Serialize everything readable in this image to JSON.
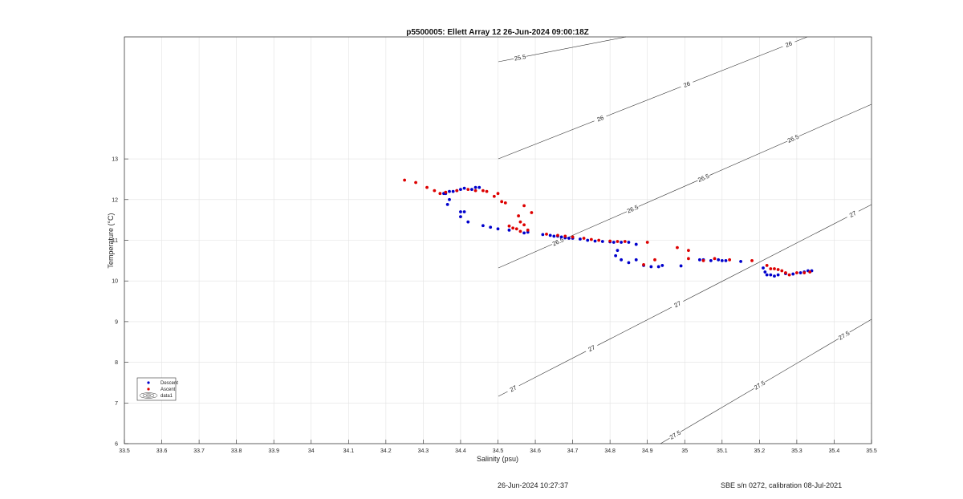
{
  "chart_data": {
    "type": "scatter",
    "title": "p5500005: Ellett Array 12 26-Jun-2024 09:00:18Z",
    "xlabel": "Salinity (psu)",
    "ylabel": "Temperature (°C)",
    "xlim": [
      33.5,
      35.5
    ],
    "ylim": [
      6,
      16
    ],
    "xticks": [
      "33.5",
      "33.6",
      "33.7",
      "33.8",
      "33.9",
      "34",
      "34.1",
      "34.2",
      "34.3",
      "34.4",
      "34.5",
      "34.6",
      "34.7",
      "34.8",
      "34.9",
      "35",
      "35.1",
      "35.2",
      "35.3",
      "35.4",
      "35.5"
    ],
    "yticks": [
      "6",
      "7",
      "8",
      "9",
      "10",
      "11",
      "12",
      "13"
    ],
    "grid": true,
    "legend_position": "lower-left",
    "legend": [
      {
        "name": "Descent",
        "color": "#0000cc",
        "marker": "dot"
      },
      {
        "name": "Ascent",
        "color": "#dd0000",
        "marker": "dot"
      },
      {
        "name": "data1",
        "color": "#333333",
        "marker": "contour"
      }
    ],
    "series": [
      {
        "name": "Descent",
        "color": "#0000cc",
        "points": [
          [
            34.37,
            12.2
          ],
          [
            34.38,
            12.2
          ],
          [
            34.39,
            12.22
          ],
          [
            34.4,
            12.25
          ],
          [
            34.41,
            12.28
          ],
          [
            34.43,
            12.25
          ],
          [
            34.44,
            12.3
          ],
          [
            34.45,
            12.3
          ],
          [
            34.355,
            12.15
          ],
          [
            34.36,
            12.15
          ],
          [
            34.37,
            12.0
          ],
          [
            34.365,
            11.88
          ],
          [
            34.4,
            11.7
          ],
          [
            34.41,
            11.7
          ],
          [
            34.4,
            11.58
          ],
          [
            34.42,
            11.45
          ],
          [
            34.46,
            11.36
          ],
          [
            34.48,
            11.32
          ],
          [
            34.5,
            11.28
          ],
          [
            34.53,
            11.25
          ],
          [
            34.57,
            11.18
          ],
          [
            34.58,
            11.2
          ],
          [
            34.62,
            11.14
          ],
          [
            34.64,
            11.12
          ],
          [
            34.65,
            11.1
          ],
          [
            34.66,
            11.1
          ],
          [
            34.67,
            11.08
          ],
          [
            34.68,
            11.06
          ],
          [
            34.69,
            11.05
          ],
          [
            34.7,
            11.05
          ],
          [
            34.72,
            11.03
          ],
          [
            34.74,
            11.0
          ],
          [
            34.76,
            10.98
          ],
          [
            34.78,
            10.97
          ],
          [
            34.8,
            10.96
          ],
          [
            34.81,
            10.95
          ],
          [
            34.83,
            10.95
          ],
          [
            34.85,
            10.95
          ],
          [
            34.87,
            10.9
          ],
          [
            34.82,
            10.75
          ],
          [
            34.815,
            10.62
          ],
          [
            34.83,
            10.52
          ],
          [
            34.85,
            10.45
          ],
          [
            34.87,
            10.52
          ],
          [
            34.89,
            10.38
          ],
          [
            34.91,
            10.35
          ],
          [
            34.93,
            10.35
          ],
          [
            34.94,
            10.38
          ],
          [
            34.99,
            10.37
          ],
          [
            35.04,
            10.52
          ],
          [
            35.05,
            10.52
          ],
          [
            35.07,
            10.5
          ],
          [
            35.09,
            10.52
          ],
          [
            35.1,
            10.5
          ],
          [
            35.11,
            10.5
          ],
          [
            35.15,
            10.48
          ],
          [
            35.21,
            10.32
          ],
          [
            35.215,
            10.22
          ],
          [
            35.22,
            10.15
          ],
          [
            35.23,
            10.15
          ],
          [
            35.24,
            10.12
          ],
          [
            35.25,
            10.15
          ],
          [
            35.27,
            10.18
          ],
          [
            35.29,
            10.17
          ],
          [
            35.31,
            10.2
          ],
          [
            35.32,
            10.22
          ],
          [
            35.33,
            10.25
          ],
          [
            35.34,
            10.25
          ]
        ]
      },
      {
        "name": "Ascent",
        "color": "#dd0000",
        "points": [
          [
            34.25,
            12.48
          ],
          [
            34.28,
            12.42
          ],
          [
            34.31,
            12.3
          ],
          [
            34.33,
            12.22
          ],
          [
            34.345,
            12.15
          ],
          [
            34.36,
            12.18
          ],
          [
            34.39,
            12.22
          ],
          [
            34.42,
            12.25
          ],
          [
            34.44,
            12.22
          ],
          [
            34.46,
            12.22
          ],
          [
            34.47,
            12.2
          ],
          [
            34.49,
            12.08
          ],
          [
            34.5,
            12.15
          ],
          [
            34.51,
            11.95
          ],
          [
            34.52,
            11.92
          ],
          [
            34.57,
            11.85
          ],
          [
            34.59,
            11.68
          ],
          [
            34.555,
            11.6
          ],
          [
            34.56,
            11.45
          ],
          [
            34.57,
            11.38
          ],
          [
            34.53,
            11.35
          ],
          [
            34.54,
            11.3
          ],
          [
            34.55,
            11.28
          ],
          [
            34.56,
            11.22
          ],
          [
            34.58,
            11.25
          ],
          [
            34.63,
            11.15
          ],
          [
            34.66,
            11.12
          ],
          [
            34.68,
            11.1
          ],
          [
            34.7,
            11.08
          ],
          [
            34.73,
            11.05
          ],
          [
            34.75,
            11.02
          ],
          [
            34.77,
            11.0
          ],
          [
            34.8,
            10.98
          ],
          [
            34.82,
            10.97
          ],
          [
            34.84,
            10.97
          ],
          [
            34.9,
            10.95
          ],
          [
            34.89,
            10.4
          ],
          [
            34.92,
            10.52
          ],
          [
            34.98,
            10.82
          ],
          [
            35.01,
            10.75
          ],
          [
            35.01,
            10.55
          ],
          [
            35.05,
            10.5
          ],
          [
            35.08,
            10.55
          ],
          [
            35.12,
            10.52
          ],
          [
            35.18,
            10.5
          ],
          [
            35.22,
            10.38
          ],
          [
            35.23,
            10.3
          ],
          [
            35.24,
            10.3
          ],
          [
            35.25,
            10.28
          ],
          [
            35.26,
            10.25
          ],
          [
            35.27,
            10.2
          ],
          [
            35.28,
            10.15
          ],
          [
            35.3,
            10.2
          ],
          [
            35.32,
            10.2
          ],
          [
            35.335,
            10.22
          ]
        ]
      }
    ],
    "contours": [
      {
        "level": "25.5",
        "labels": [
          "25.5"
        ]
      },
      {
        "level": "26",
        "labels": [
          "26",
          "26",
          "26"
        ]
      },
      {
        "level": "26.5",
        "labels": [
          "26.5",
          "26.5",
          "26.5",
          "26.5"
        ]
      },
      {
        "level": "27",
        "labels": [
          "27",
          "27",
          "27",
          "27"
        ]
      },
      {
        "level": "27.5",
        "labels": [
          "27.5",
          "27.5",
          "27.5"
        ]
      }
    ]
  },
  "footer": {
    "timestamp": "26-Jun-2024 10:27:37",
    "instrument": "SBE s/n 0272, calibration 08-Jul-2021"
  }
}
